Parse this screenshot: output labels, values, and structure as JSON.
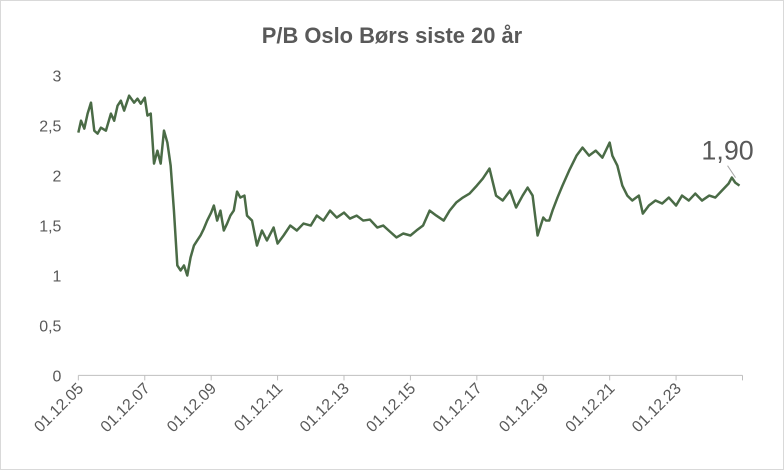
{
  "chart_data": {
    "type": "line",
    "title": "P/B  Oslo Børs siste 20 år",
    "xlabel": "",
    "ylabel": "",
    "ylim": [
      0,
      3
    ],
    "yticks": [
      "0",
      "0,5",
      "1",
      "1,5",
      "2",
      "2,5",
      "3"
    ],
    "ytick_values": [
      0,
      0.5,
      1,
      1.5,
      2,
      2.5,
      3
    ],
    "xticks": [
      "01.12.05",
      "01.12.07",
      "01.12.09",
      "01.12.11",
      "01.12.13",
      "01.12.15",
      "01.12.17",
      "01.12.19",
      "01.12.21",
      "01.12.23"
    ],
    "xtick_values": [
      2005.92,
      2007.92,
      2009.92,
      2011.92,
      2013.92,
      2015.92,
      2017.92,
      2019.92,
      2021.92,
      2023.92
    ],
    "xlim": [
      2005.92,
      2025.92
    ],
    "grid": false,
    "legend": "none",
    "line_color": "#4a6b46",
    "annotation": {
      "text": "1,90",
      "x": 2025.83,
      "y": 1.9
    },
    "series": [
      {
        "x": [
          2005.92,
          2006.0,
          2006.1,
          2006.2,
          2006.3,
          2006.4,
          2006.5,
          2006.6,
          2006.75,
          2006.9,
          2007.0,
          2007.1,
          2007.2,
          2007.3,
          2007.45,
          2007.6,
          2007.7,
          2007.8,
          2007.92,
          2008.0,
          2008.1,
          2008.2,
          2008.3,
          2008.4,
          2008.5,
          2008.6,
          2008.7,
          2008.8,
          2008.9,
          2009.0,
          2009.1,
          2009.2,
          2009.3,
          2009.4,
          2009.5,
          2009.6,
          2009.7,
          2009.8,
          2009.92,
          2010.0,
          2010.1,
          2010.2,
          2010.3,
          2010.4,
          2010.5,
          2010.6,
          2010.7,
          2010.8,
          2010.92,
          2011.0,
          2011.15,
          2011.3,
          2011.45,
          2011.6,
          2011.8,
          2011.92,
          2012.1,
          2012.3,
          2012.5,
          2012.7,
          2012.92,
          2013.1,
          2013.3,
          2013.5,
          2013.7,
          2013.92,
          2014.1,
          2014.3,
          2014.5,
          2014.7,
          2014.92,
          2015.1,
          2015.3,
          2015.5,
          2015.7,
          2015.92,
          2016.1,
          2016.3,
          2016.5,
          2016.7,
          2016.92,
          2017.1,
          2017.3,
          2017.5,
          2017.7,
          2017.92,
          2018.1,
          2018.3,
          2018.5,
          2018.7,
          2018.92,
          2019.1,
          2019.3,
          2019.45,
          2019.6,
          2019.75,
          2019.92,
          2020.0,
          2020.1,
          2020.2,
          2020.35,
          2020.5,
          2020.7,
          2020.92,
          2021.1,
          2021.3,
          2021.5,
          2021.7,
          2021.92,
          2022.0,
          2022.15,
          2022.3,
          2022.45,
          2022.6,
          2022.8,
          2022.92,
          2023.1,
          2023.3,
          2023.5,
          2023.7,
          2023.92,
          2024.1,
          2024.3,
          2024.5,
          2024.7,
          2024.92,
          2025.1,
          2025.3,
          2025.5,
          2025.6,
          2025.7,
          2025.83
        ],
        "values": [
          2.43,
          2.55,
          2.47,
          2.62,
          2.73,
          2.45,
          2.42,
          2.48,
          2.45,
          2.62,
          2.55,
          2.7,
          2.75,
          2.65,
          2.8,
          2.73,
          2.77,
          2.72,
          2.78,
          2.6,
          2.62,
          2.12,
          2.25,
          2.12,
          2.45,
          2.33,
          2.1,
          1.65,
          1.1,
          1.05,
          1.1,
          1.0,
          1.18,
          1.3,
          1.35,
          1.4,
          1.47,
          1.55,
          1.63,
          1.7,
          1.55,
          1.65,
          1.45,
          1.52,
          1.6,
          1.65,
          1.84,
          1.78,
          1.8,
          1.6,
          1.55,
          1.3,
          1.45,
          1.35,
          1.48,
          1.32,
          1.4,
          1.5,
          1.45,
          1.52,
          1.5,
          1.6,
          1.55,
          1.65,
          1.58,
          1.63,
          1.57,
          1.6,
          1.55,
          1.56,
          1.48,
          1.5,
          1.44,
          1.38,
          1.42,
          1.4,
          1.45,
          1.5,
          1.65,
          1.6,
          1.55,
          1.65,
          1.73,
          1.78,
          1.82,
          1.9,
          1.97,
          2.07,
          1.8,
          1.75,
          1.85,
          1.68,
          1.8,
          1.88,
          1.8,
          1.4,
          1.58,
          1.55,
          1.55,
          1.65,
          1.78,
          1.9,
          2.05,
          2.2,
          2.28,
          2.2,
          2.25,
          2.18,
          2.33,
          2.2,
          2.1,
          1.9,
          1.8,
          1.75,
          1.8,
          1.62,
          1.7,
          1.75,
          1.72,
          1.78,
          1.7,
          1.8,
          1.75,
          1.82,
          1.75,
          1.8,
          1.78,
          1.85,
          1.92,
          1.98,
          1.93,
          1.9
        ]
      }
    ]
  }
}
